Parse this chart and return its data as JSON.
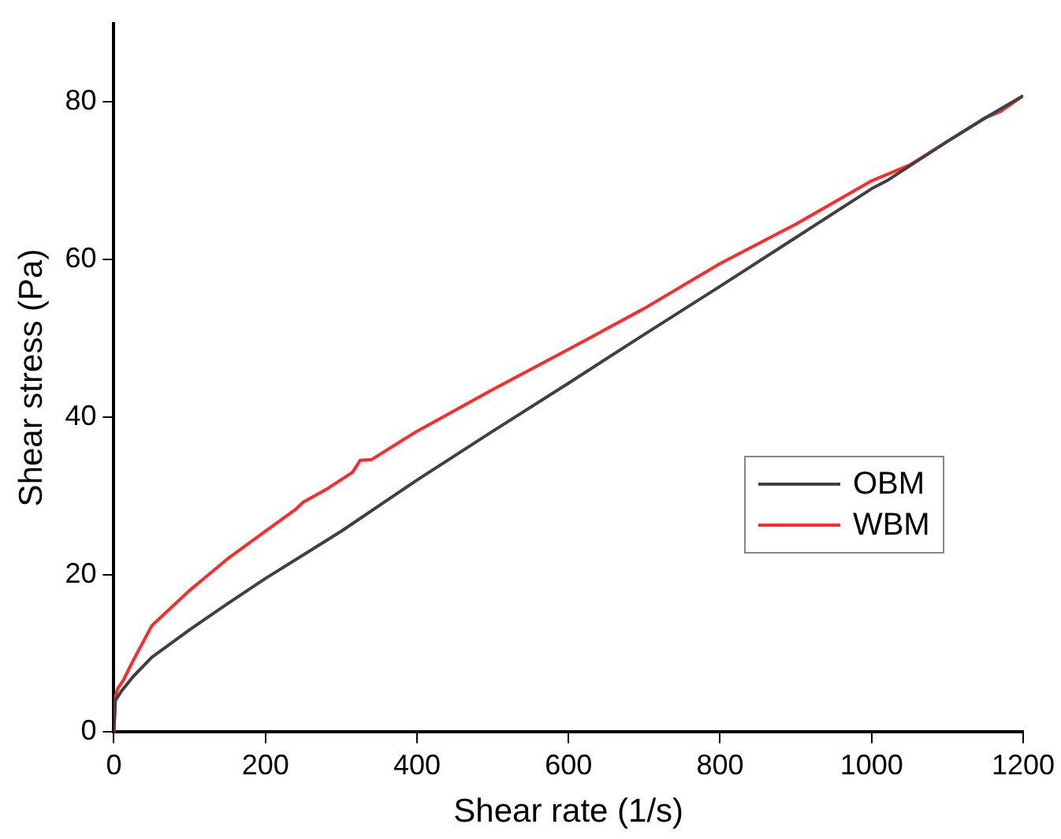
{
  "chart_data": {
    "type": "line",
    "xlabel": "Shear rate (1/s)",
    "ylabel": "Shear stress (Pa)",
    "xlim": [
      0,
      1200
    ],
    "ylim": [
      0,
      90
    ],
    "xticks": [
      0,
      200,
      400,
      600,
      800,
      1000,
      1200
    ],
    "yticks": [
      0,
      20,
      40,
      60,
      80
    ],
    "grid": false,
    "legend": "right",
    "marker": "none",
    "line_style": "solid",
    "series": [
      {
        "name": "OBM",
        "color": "#404040",
        "x": [
          0,
          2,
          10,
          25,
          50,
          100,
          150,
          200,
          250,
          300,
          400,
          500,
          600,
          700,
          800,
          900,
          1000,
          1020,
          1100,
          1150,
          1200
        ],
        "values": [
          0,
          4,
          5.2,
          7,
          9.5,
          13,
          16.3,
          19.5,
          22.5,
          25.5,
          32,
          38.2,
          44.3,
          50.5,
          56.6,
          62.8,
          69,
          70,
          75,
          78,
          80.8
        ]
      },
      {
        "name": "WBM",
        "color": "#ff2a2a",
        "x": [
          0,
          2,
          5,
          12,
          25,
          50,
          100,
          150,
          200,
          240,
          250,
          280,
          315,
          325,
          340,
          400,
          500,
          600,
          700,
          800,
          900,
          1000,
          1050,
          1100,
          1150,
          1170,
          1200
        ],
        "values": [
          0,
          4.5,
          5.5,
          6.5,
          9,
          13.5,
          18,
          22,
          25.5,
          28.3,
          29.2,
          30.8,
          33,
          34.5,
          34.6,
          38.2,
          43.5,
          48.6,
          53.8,
          59.5,
          64.5,
          70,
          72,
          75,
          78,
          78.8,
          80.8
        ]
      }
    ]
  }
}
